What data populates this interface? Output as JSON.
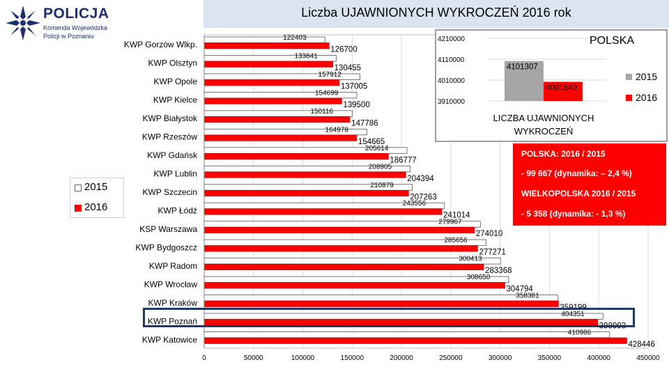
{
  "logo": {
    "name": "POLICJA",
    "subtitle_1": "Komenda Wojewódzka",
    "subtitle_2": "Policji w Poznaniu"
  },
  "colors": {
    "series_2015": "#ffffff",
    "series_2016": "#ff0000",
    "inset_2015": "#a6a6a6",
    "inset_2016": "#ff0000",
    "header": "#dbe5f1",
    "summary_bg": "#ff0000",
    "frame": "#1f3864"
  },
  "chart_data": [
    {
      "type": "bar",
      "orientation": "horizontal",
      "title": "Liczba UJAWNIONYCH WYKROCZEŃ  2016 rok",
      "categories": [
        "KWP Gorzów Wlkp.",
        "KWP Olsztyn",
        "KWP Opole",
        "KWP Kielce",
        "KWP Białystok",
        "KWP Rzeszów",
        "KWP Gdańsk",
        "KWP Lublin",
        "KWP Szczecin",
        "KWP Łódź",
        "KSP Warszawa",
        "KWP Bydgoszcz",
        "KWP Radom",
        "KWP Wrocław",
        "KWP Kraków",
        "KWP Poznań",
        "KWP Katowice"
      ],
      "series": [
        {
          "name": "2015",
          "values": [
            122403,
            133841,
            157912,
            154699,
            150116,
            164978,
            205614,
            208905,
            210879,
            243556,
            279967,
            285656,
            300413,
            308650,
            358381,
            404351,
            410986
          ]
        },
        {
          "name": "2016",
          "values": [
            126700,
            130455,
            137005,
            139500,
            147786,
            154665,
            186777,
            204394,
            207263,
            241014,
            274010,
            277271,
            283368,
            304794,
            359199,
            398993,
            428446
          ]
        }
      ],
      "value_labels_2015": [
        "122403",
        "133841",
        "157912",
        "154699",
        "150116",
        "164978",
        "205614",
        "208905",
        "210879",
        "243556",
        "279967",
        "285656",
        "300413",
        "308650",
        "358381",
        "404351",
        "410986"
      ],
      "value_labels_2016": [
        "126700",
        "130455",
        "137005",
        "139500",
        "147786",
        "154665",
        "186777",
        "204394",
        "207263",
        "241014",
        "274010",
        "277271",
        "283368",
        "304794",
        "359199",
        "398993",
        "428446"
      ],
      "xlim": [
        0,
        450000
      ],
      "x_ticks": [
        "0",
        "50000",
        "100000",
        "150000",
        "200000",
        "250000",
        "300000",
        "350000",
        "400000",
        "450000"
      ],
      "grid": true,
      "legend": {
        "position": "left",
        "labels": [
          "2015",
          "2016"
        ]
      },
      "highlighted_category": "KWP Poznań"
    },
    {
      "type": "bar",
      "title": "POLSKA",
      "caption_line_1": "LICZBA UJAWNIONYCH",
      "caption_line_2": "WYKROCZEŃ",
      "series": [
        {
          "name": "2015",
          "values": [
            4101307
          ]
        },
        {
          "name": "2016",
          "values": [
            4001640
          ]
        }
      ],
      "value_labels": [
        "4101307",
        "4001640"
      ],
      "ylim": [
        3910000,
        4210000
      ],
      "y_ticks": [
        "4210000",
        "4110000",
        "4010000",
        "3910000"
      ],
      "grid": true,
      "legend": {
        "position": "right",
        "labels": [
          "2015",
          "2016"
        ]
      }
    }
  ],
  "summary": {
    "line_1": "POLSKA: 2016 / 2015",
    "line_2": "- 99 667 (dynamika: – 2,4 %)",
    "line_3": "WIELKOPOLSKA 2016 / 2015",
    "line_4": "- 5 358 (dynamika:  - 1,3 %)"
  }
}
